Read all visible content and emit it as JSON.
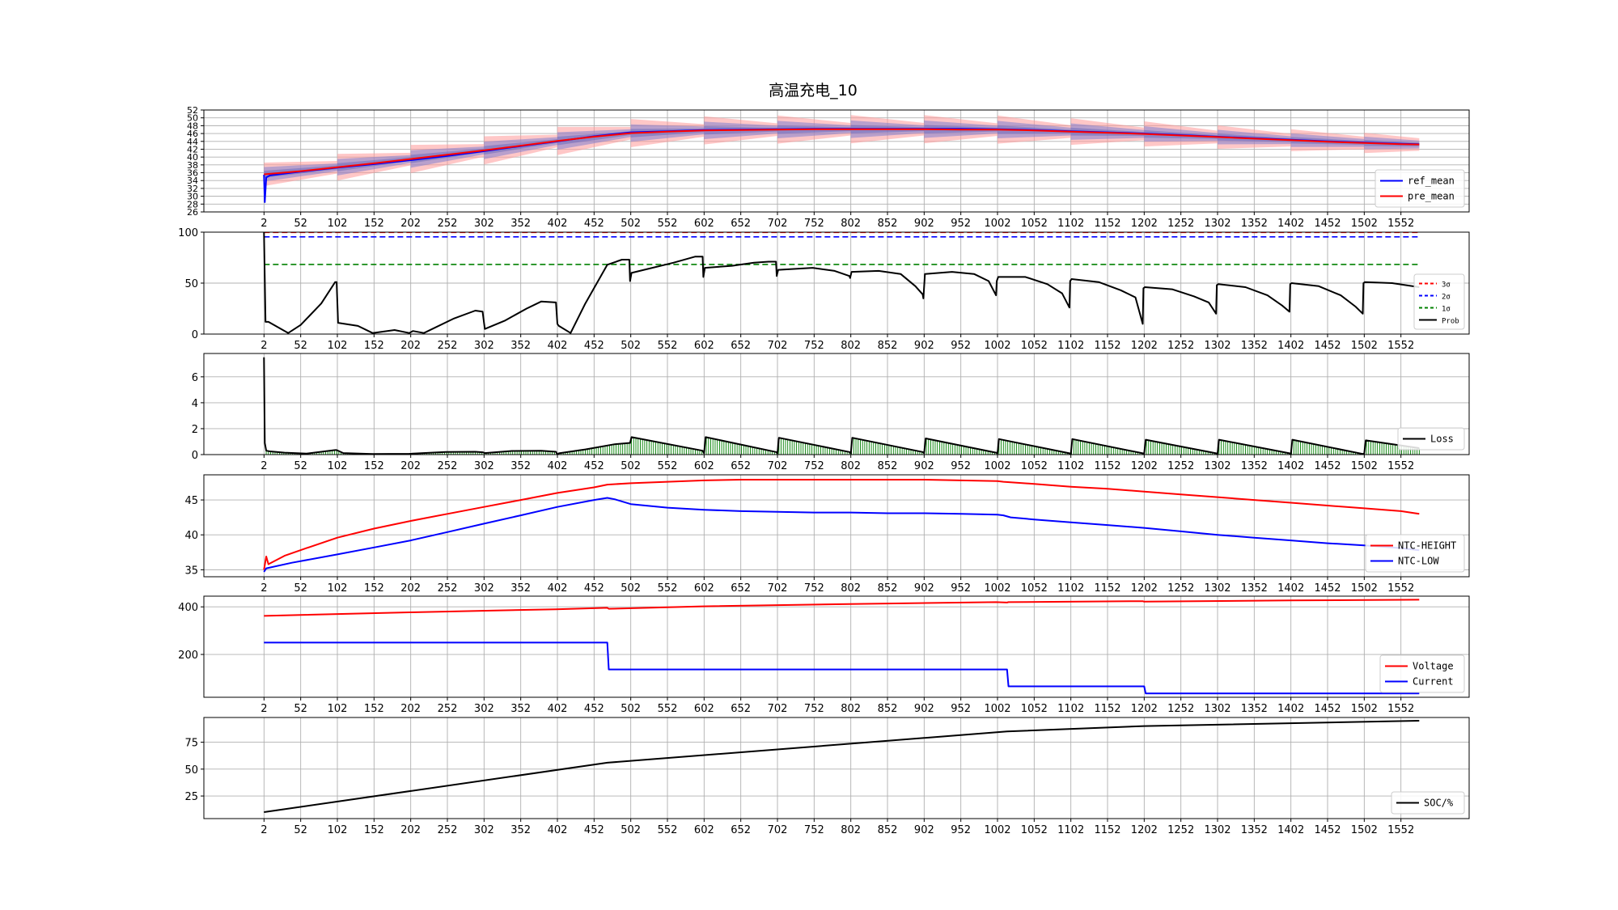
{
  "figure": {
    "title": "高温充电_10"
  },
  "x_ticks": [
    "2",
    "52",
    "102",
    "152",
    "202",
    "252",
    "302",
    "352",
    "402",
    "452",
    "502",
    "552",
    "602",
    "652",
    "702",
    "752",
    "802",
    "852",
    "902",
    "952",
    "1002",
    "1052",
    "1102",
    "1152",
    "1202",
    "1252",
    "1302",
    "1352",
    "1402",
    "1452",
    "1502",
    "1552"
  ],
  "colors": {
    "ref": "#0000ff",
    "pre": "#ff0000",
    "black": "#000000",
    "green": "#008000",
    "band_red": "#ff9999",
    "band_blue": "#8080d0",
    "grid": "#b0b0b0"
  },
  "chart_data": [
    {
      "type": "line",
      "id": "temp_pred",
      "ylim": [
        26,
        52
      ],
      "yticks": [
        26,
        28,
        30,
        32,
        34,
        36,
        38,
        40,
        42,
        44,
        46,
        48,
        50,
        52
      ],
      "xlim": [
        -80,
        1645
      ],
      "grid": true,
      "legend_position": "lower-right",
      "series": [
        {
          "name": "ref_mean",
          "color": "#0000ff",
          "x": [
            2,
            3,
            5,
            10,
            52,
            102,
            152,
            202,
            252,
            302,
            352,
            402,
            452,
            502,
            552,
            602,
            652,
            702,
            752,
            802,
            852,
            902,
            952,
            1002,
            1052,
            1102,
            1152,
            1202,
            1252,
            1302,
            1352,
            1402,
            1452,
            1502,
            1552,
            1577
          ],
          "y": [
            35.5,
            28.5,
            34.8,
            35.3,
            36.3,
            37.3,
            38.2,
            39.2,
            40.3,
            41.5,
            42.8,
            44.0,
            45.3,
            46.3,
            46.6,
            46.9,
            47.0,
            47.1,
            47.2,
            47.2,
            47.2,
            47.2,
            47.2,
            47.1,
            46.9,
            46.6,
            46.3,
            46.0,
            45.6,
            45.2,
            44.8,
            44.4,
            44.0,
            43.7,
            43.4,
            43.3
          ]
        },
        {
          "name": "pre_mean",
          "color": "#ff0000",
          "x": [
            2,
            52,
            102,
            152,
            202,
            252,
            302,
            352,
            402,
            452,
            502,
            552,
            602,
            652,
            702,
            752,
            802,
            852,
            902,
            952,
            1002,
            1052,
            1102,
            1152,
            1202,
            1252,
            1302,
            1352,
            1402,
            1452,
            1502,
            1552,
            1577
          ],
          "y": [
            35.6,
            36.4,
            37.4,
            38.4,
            39.5,
            40.6,
            41.7,
            42.9,
            44.1,
            45.2,
            46.1,
            46.5,
            46.8,
            46.9,
            47.0,
            47.1,
            47.1,
            47.1,
            47.1,
            47.0,
            47.0,
            46.8,
            46.5,
            46.2,
            45.9,
            45.5,
            45.1,
            44.7,
            44.3,
            43.9,
            43.6,
            43.3,
            43.2
          ]
        }
      ],
      "band_segments": [
        {
          "x0": 2,
          "x1": 102,
          "c0": 35.6,
          "c1": 37.4,
          "w0": 3.0,
          "w1": 1.6
        },
        {
          "x0": 102,
          "x1": 202,
          "c0": 37.4,
          "c1": 39.5,
          "w0": 3.4,
          "w1": 1.6
        },
        {
          "x0": 202,
          "x1": 302,
          "c0": 39.5,
          "c1": 41.7,
          "w0": 3.6,
          "w1": 1.6
        },
        {
          "x0": 302,
          "x1": 402,
          "c0": 41.7,
          "c1": 44.1,
          "w0": 3.6,
          "w1": 1.6
        },
        {
          "x0": 402,
          "x1": 502,
          "c0": 44.1,
          "c1": 46.1,
          "w0": 3.6,
          "w1": 1.6
        },
        {
          "x0": 502,
          "x1": 602,
          "c0": 46.1,
          "c1": 46.8,
          "w0": 3.6,
          "w1": 1.6
        },
        {
          "x0": 602,
          "x1": 702,
          "c0": 46.8,
          "c1": 47.0,
          "w0": 3.6,
          "w1": 1.6
        },
        {
          "x0": 702,
          "x1": 802,
          "c0": 47.0,
          "c1": 47.1,
          "w0": 3.6,
          "w1": 1.6
        },
        {
          "x0": 802,
          "x1": 902,
          "c0": 47.1,
          "c1": 47.1,
          "w0": 3.6,
          "w1": 1.6
        },
        {
          "x0": 902,
          "x1": 1002,
          "c0": 47.1,
          "c1": 47.0,
          "w0": 3.6,
          "w1": 1.6
        },
        {
          "x0": 1002,
          "x1": 1102,
          "c0": 47.0,
          "c1": 46.5,
          "w0": 3.6,
          "w1": 1.6
        },
        {
          "x0": 1102,
          "x1": 1202,
          "c0": 46.5,
          "c1": 45.9,
          "w0": 3.4,
          "w1": 1.6
        },
        {
          "x0": 1202,
          "x1": 1302,
          "c0": 45.9,
          "c1": 45.1,
          "w0": 3.2,
          "w1": 1.6
        },
        {
          "x0": 1302,
          "x1": 1402,
          "c0": 45.1,
          "c1": 44.3,
          "w0": 3.0,
          "w1": 1.6
        },
        {
          "x0": 1402,
          "x1": 1502,
          "c0": 44.3,
          "c1": 43.6,
          "w0": 2.8,
          "w1": 1.6
        },
        {
          "x0": 1502,
          "x1": 1577,
          "c0": 43.6,
          "c1": 43.2,
          "w0": 2.6,
          "w1": 1.6
        }
      ]
    },
    {
      "type": "line",
      "id": "probability",
      "ylim": [
        0,
        100
      ],
      "yticks": [
        0,
        50,
        100
      ],
      "xlim": [
        -80,
        1645
      ],
      "grid": true,
      "legend_position": "lower-right",
      "hlines": [
        {
          "name": "3σ",
          "y": 99.7,
          "color": "#ff0000",
          "style": "dashed"
        },
        {
          "name": "2σ",
          "y": 95.4,
          "color": "#0000ff",
          "style": "dashed"
        },
        {
          "name": "1σ",
          "y": 68.3,
          "color": "#008000",
          "style": "dashed"
        }
      ],
      "series": [
        {
          "name": "Prob",
          "color": "#000000",
          "x": [
            2,
            4,
            8,
            35,
            52,
            80,
            99,
            101,
            103,
            130,
            150,
            180,
            200,
            205,
            220,
            260,
            290,
            300,
            303,
            330,
            360,
            380,
            400,
            402,
            404,
            420,
            440,
            470,
            490,
            500,
            501,
            503,
            520,
            560,
            590,
            600,
            601,
            603,
            640,
            670,
            690,
            700,
            701,
            703,
            750,
            780,
            800,
            801,
            803,
            840,
            870,
            890,
            900,
            901,
            903,
            940,
            970,
            990,
            1000,
            1001,
            1003,
            1040,
            1070,
            1090,
            1100,
            1101,
            1103,
            1140,
            1170,
            1190,
            1200,
            1201,
            1203,
            1240,
            1270,
            1290,
            1300,
            1301,
            1303,
            1340,
            1370,
            1390,
            1400,
            1401,
            1403,
            1440,
            1470,
            1490,
            1500,
            1501,
            1503,
            1540,
            1577
          ],
          "y": [
            100,
            12,
            12,
            1,
            9,
            30,
            51,
            51,
            11,
            8,
            1,
            4,
            1,
            3,
            1,
            15,
            23,
            22,
            5,
            13,
            25,
            32,
            31,
            10,
            8,
            1,
            30,
            68,
            73,
            73,
            52,
            60,
            63,
            70,
            76,
            76,
            56,
            65,
            67,
            70,
            71,
            71,
            57,
            63,
            65,
            62,
            57,
            55,
            61,
            62,
            59,
            47,
            39,
            35,
            59,
            61,
            59,
            52,
            38,
            52,
            56,
            56,
            49,
            40,
            26,
            52,
            54,
            51,
            43,
            36,
            10,
            45,
            46,
            44,
            37,
            31,
            20,
            48,
            49,
            46,
            38,
            28,
            22,
            49,
            50,
            47,
            38,
            27,
            20,
            50,
            51,
            50,
            46
          ]
        }
      ]
    },
    {
      "type": "line",
      "id": "loss",
      "ylim": [
        0,
        7.8
      ],
      "yticks": [
        0,
        2,
        4,
        6
      ],
      "xlim": [
        -80,
        1645
      ],
      "grid": true,
      "legend_position": "lower-right",
      "series": [
        {
          "name": "Loss",
          "color": "#000000",
          "x": [
            2,
            3,
            5,
            10,
            30,
            60,
            99,
            101,
            110,
            150,
            200,
            250,
            290,
            300,
            303,
            340,
            380,
            400,
            402,
            404,
            440,
            480,
            500,
            501,
            503,
            600,
            602,
            604,
            700,
            702,
            704,
            800,
            802,
            804,
            900,
            902,
            904,
            1000,
            1002,
            1004,
            1100,
            1102,
            1104,
            1200,
            1202,
            1204,
            1300,
            1302,
            1304,
            1400,
            1402,
            1404,
            1500,
            1502,
            1504,
            1577
          ],
          "y": [
            7.5,
            0.9,
            0.3,
            0.25,
            0.15,
            0.08,
            0.35,
            0.35,
            0.12,
            0.05,
            0.06,
            0.2,
            0.22,
            0.18,
            0.12,
            0.28,
            0.3,
            0.22,
            0.0,
            0.1,
            0.4,
            0.8,
            0.9,
            0.9,
            1.35,
            0.3,
            0.1,
            1.35,
            0.2,
            0.1,
            1.3,
            0.2,
            0.1,
            1.3,
            0.2,
            0.1,
            1.25,
            0.15,
            0.1,
            1.2,
            0.1,
            0.08,
            1.2,
            0.1,
            0.08,
            1.15,
            0.1,
            0.08,
            1.15,
            0.1,
            0.08,
            1.15,
            0.05,
            0.08,
            1.1,
            0.5
          ]
        }
      ],
      "bars_color": "#008000"
    },
    {
      "type": "line",
      "id": "ntc",
      "ylim": [
        34,
        48.6
      ],
      "yticks": [
        35,
        40,
        45
      ],
      "xlim": [
        -80,
        1645
      ],
      "grid": true,
      "legend_position": "lower-right",
      "series": [
        {
          "name": "NTC-HEIGHT",
          "color": "#ff0000",
          "x": [
            2,
            5,
            8,
            30,
            60,
            102,
            152,
            202,
            252,
            302,
            352,
            402,
            452,
            470,
            502,
            552,
            602,
            652,
            702,
            752,
            802,
            852,
            902,
            952,
            1002,
            1010,
            1052,
            1102,
            1152,
            1202,
            1252,
            1302,
            1352,
            1402,
            1452,
            1502,
            1552,
            1577
          ],
          "y": [
            35.0,
            36.9,
            35.8,
            37.0,
            38.1,
            39.6,
            40.9,
            42.0,
            43.0,
            44.0,
            45.0,
            46.0,
            46.8,
            47.2,
            47.4,
            47.6,
            47.8,
            47.9,
            47.9,
            47.9,
            47.9,
            47.9,
            47.9,
            47.8,
            47.7,
            47.6,
            47.3,
            46.9,
            46.6,
            46.2,
            45.8,
            45.4,
            45.0,
            44.6,
            44.2,
            43.8,
            43.4,
            43.0
          ]
        },
        {
          "name": "NTC-LOW",
          "color": "#0000ff",
          "x": [
            2,
            5,
            40,
            102,
            152,
            202,
            252,
            302,
            352,
            402,
            452,
            470,
            480,
            502,
            552,
            602,
            652,
            702,
            752,
            802,
            852,
            902,
            952,
            1002,
            1010,
            1020,
            1052,
            1102,
            1152,
            1202,
            1252,
            1302,
            1352,
            1402,
            1452,
            1502,
            1552,
            1577
          ],
          "y": [
            34.7,
            35.2,
            36.0,
            37.2,
            38.2,
            39.2,
            40.4,
            41.6,
            42.8,
            44.0,
            45.0,
            45.3,
            45.1,
            44.4,
            43.9,
            43.6,
            43.4,
            43.3,
            43.2,
            43.2,
            43.1,
            43.1,
            43.0,
            42.9,
            42.8,
            42.5,
            42.2,
            41.8,
            41.4,
            41.0,
            40.5,
            40.0,
            39.6,
            39.2,
            38.8,
            38.5,
            38.1,
            37.8
          ]
        }
      ]
    },
    {
      "type": "line",
      "id": "voltage_current",
      "ylim": [
        20,
        445
      ],
      "yticks": [
        200,
        400
      ],
      "xlim": [
        -80,
        1645
      ],
      "grid": true,
      "legend_position": "lower-right",
      "series": [
        {
          "name": "Voltage",
          "color": "#ff0000",
          "x": [
            2,
            200,
            400,
            470,
            472,
            600,
            800,
            1000,
            1015,
            1017,
            1200,
            1202,
            1400,
            1577
          ],
          "y": [
            362,
            377,
            390,
            396,
            392,
            402,
            412,
            420,
            418,
            420,
            424,
            422,
            427,
            430
          ]
        },
        {
          "name": "Current",
          "color": "#0000ff",
          "x": [
            2,
            470,
            472,
            1015,
            1017,
            1202,
            1204,
            1577
          ],
          "y": [
            250,
            250,
            137,
            137,
            66,
            66,
            36,
            36
          ]
        }
      ]
    },
    {
      "type": "line",
      "id": "soc",
      "ylim": [
        4,
        98
      ],
      "yticks": [
        25,
        50,
        75
      ],
      "xlim": [
        -80,
        1645
      ],
      "grid": true,
      "legend_position": "lower-right",
      "series": [
        {
          "name": "SOC/%",
          "color": "#000000",
          "x": [
            2,
            470,
            1015,
            1202,
            1577
          ],
          "y": [
            10,
            56,
            85,
            90,
            95
          ]
        }
      ]
    }
  ]
}
